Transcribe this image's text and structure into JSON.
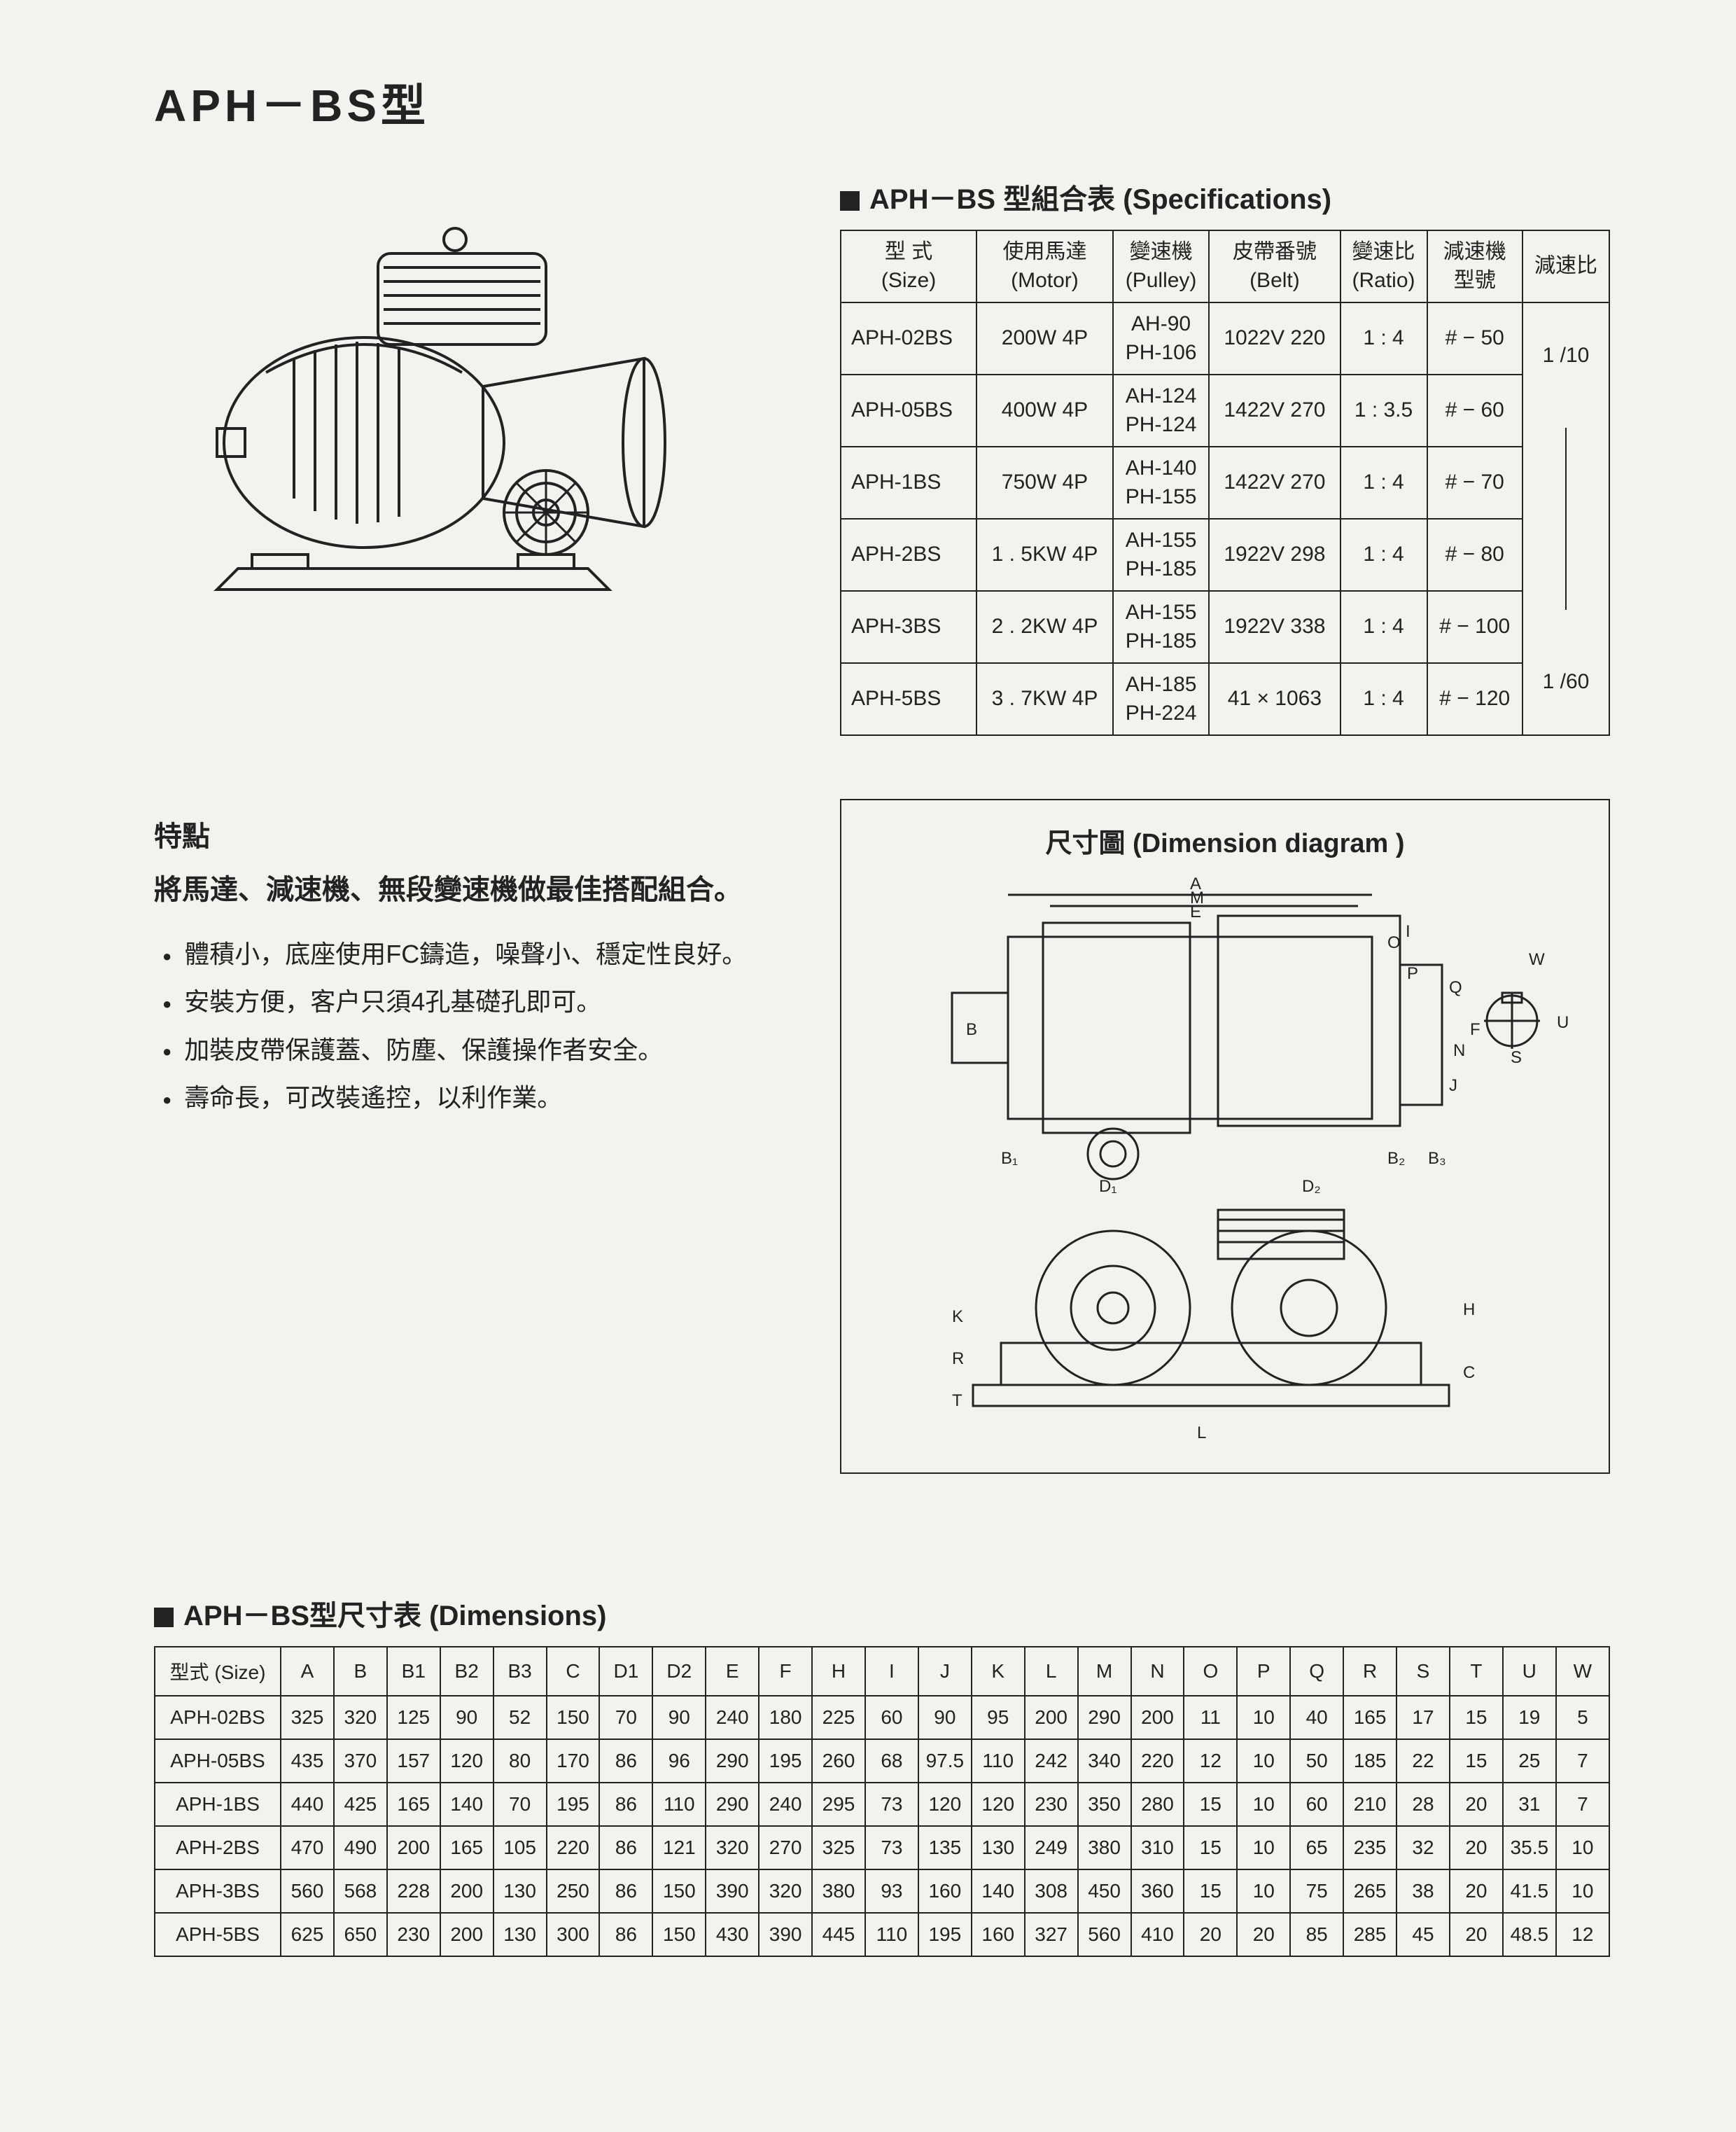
{
  "page_title": "APH－BS型",
  "spec_table": {
    "heading": "APH－BS 型組合表  (Specifications)",
    "columns": [
      {
        "top": "型 式",
        "bottom": "(Size)"
      },
      {
        "top": "使用馬達",
        "bottom": "(Motor)"
      },
      {
        "top": "變速機",
        "bottom": "(Pulley)"
      },
      {
        "top": "皮帶番號",
        "bottom": "(Belt)"
      },
      {
        "top": "變速比",
        "bottom": "(Ratio)"
      },
      {
        "top": "減速機",
        "bottom": "型號"
      },
      {
        "top": "減速比",
        "bottom": ""
      }
    ],
    "rows": [
      {
        "size": "APH-02BS",
        "motor": "200W  4P",
        "pulley_a": "AH-90",
        "pulley_b": "PH-106",
        "belt": "1022V  220",
        "ratio": "1 :  4",
        "reducer": "# − 50"
      },
      {
        "size": "APH-05BS",
        "motor": "400W  4P",
        "pulley_a": "AH-124",
        "pulley_b": "PH-124",
        "belt": "1422V  270",
        "ratio": "1 :  3.5",
        "reducer": "# − 60"
      },
      {
        "size": "APH-1BS",
        "motor": "750W 4P",
        "pulley_a": "AH-140",
        "pulley_b": "PH-155",
        "belt": "1422V  270",
        "ratio": "1 :  4",
        "reducer": "# − 70"
      },
      {
        "size": "APH-2BS",
        "motor": "1 . 5KW 4P",
        "pulley_a": "AH-155",
        "pulley_b": "PH-185",
        "belt": "1922V  298",
        "ratio": "1 :  4",
        "reducer": "# − 80"
      },
      {
        "size": "APH-3BS",
        "motor": "2 . 2KW 4P",
        "pulley_a": "AH-155",
        "pulley_b": "PH-185",
        "belt": "1922V  338",
        "ratio": "1 :  4",
        "reducer": "# − 100"
      },
      {
        "size": "APH-5BS",
        "motor": "3 . 7KW 4P",
        "pulley_a": "AH-185",
        "pulley_b": "PH-224",
        "belt": "41 × 1063",
        "ratio": "1 :  4",
        "reducer": "# − 120"
      }
    ],
    "reduction_ratio_top": "1 /10",
    "reduction_ratio_bottom": "1 /60"
  },
  "features": {
    "head1": "特點",
    "head2": "將馬達、減速機、無段變速機做最佳搭配組合。",
    "items": [
      "體積小，底座使用FC鑄造，噪聲小、穩定性良好。",
      "安裝方便，客户只須4孔基礎孔即可。",
      "加裝皮帶保護蓋、防塵、保護操作者安全。",
      "壽命長，可改裝遙控，以利作業。"
    ]
  },
  "dimension_diagram": {
    "title": "尺寸圖  (Dimension  diagram )",
    "labels": [
      "A",
      "M",
      "E",
      "I",
      "O",
      "P",
      "Q",
      "N",
      "F",
      "J",
      "B",
      "B₁",
      "B₂",
      "B₃",
      "D₁",
      "D₂",
      "W",
      "U",
      "S",
      "H",
      "C",
      "K",
      "R",
      "T",
      "L"
    ]
  },
  "dimensions_table": {
    "heading": "APH－BS型尺寸表  (Dimensions)",
    "first_col_label": "型式 (Size)",
    "columns": [
      "A",
      "B",
      "B1",
      "B2",
      "B3",
      "C",
      "D1",
      "D2",
      "E",
      "F",
      "H",
      "I",
      "J",
      "K",
      "L",
      "M",
      "N",
      "O",
      "P",
      "Q",
      "R",
      "S",
      "T",
      "U",
      "W"
    ],
    "rows": [
      {
        "size": "APH-02BS",
        "v": [
          "325",
          "320",
          "125",
          "90",
          "52",
          "150",
          "70",
          "90",
          "240",
          "180",
          "225",
          "60",
          "90",
          "95",
          "200",
          "290",
          "200",
          "11",
          "10",
          "40",
          "165",
          "17",
          "15",
          "19",
          "5"
        ]
      },
      {
        "size": "APH-05BS",
        "v": [
          "435",
          "370",
          "157",
          "120",
          "80",
          "170",
          "86",
          "96",
          "290",
          "195",
          "260",
          "68",
          "97.5",
          "110",
          "242",
          "340",
          "220",
          "12",
          "10",
          "50",
          "185",
          "22",
          "15",
          "25",
          "7"
        ]
      },
      {
        "size": "APH-1BS",
        "v": [
          "440",
          "425",
          "165",
          "140",
          "70",
          "195",
          "86",
          "110",
          "290",
          "240",
          "295",
          "73",
          "120",
          "120",
          "230",
          "350",
          "280",
          "15",
          "10",
          "60",
          "210",
          "28",
          "20",
          "31",
          "7"
        ]
      },
      {
        "size": "APH-2BS",
        "v": [
          "470",
          "490",
          "200",
          "165",
          "105",
          "220",
          "86",
          "121",
          "320",
          "270",
          "325",
          "73",
          "135",
          "130",
          "249",
          "380",
          "310",
          "15",
          "10",
          "65",
          "235",
          "32",
          "20",
          "35.5",
          "10"
        ]
      },
      {
        "size": "APH-3BS",
        "v": [
          "560",
          "568",
          "228",
          "200",
          "130",
          "250",
          "86",
          "150",
          "390",
          "320",
          "380",
          "93",
          "160",
          "140",
          "308",
          "450",
          "360",
          "15",
          "10",
          "75",
          "265",
          "38",
          "20",
          "41.5",
          "10"
        ]
      },
      {
        "size": "APH-5BS",
        "v": [
          "625",
          "650",
          "230",
          "200",
          "130",
          "300",
          "86",
          "150",
          "430",
          "390",
          "445",
          "110",
          "195",
          "160",
          "327",
          "560",
          "410",
          "20",
          "20",
          "85",
          "285",
          "45",
          "20",
          "48.5",
          "12"
        ]
      }
    ]
  },
  "colors": {
    "ink": "#222222",
    "paper": "#f4f2ee"
  }
}
